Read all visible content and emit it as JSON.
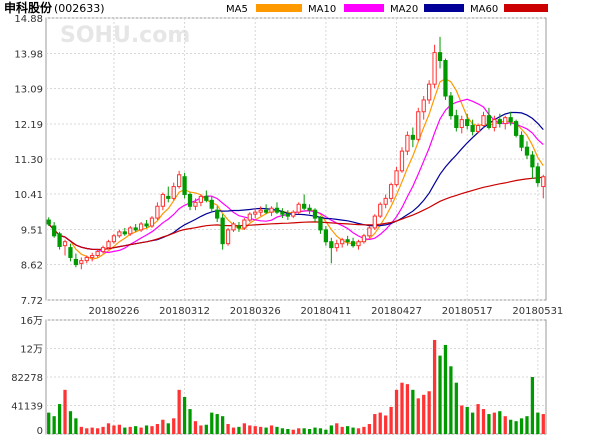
{
  "header": {
    "stock_name": "申科股份",
    "stock_code": "(002633)",
    "watermark": "SOHU.com"
  },
  "legend": [
    {
      "label": "MA5",
      "color": "#ff9900"
    },
    {
      "label": "MA10",
      "color": "#ff00ff"
    },
    {
      "label": "MA20",
      "color": "#000099"
    },
    {
      "label": "MA60",
      "color": "#cc0000"
    }
  ],
  "colors": {
    "up": "#ff3333",
    "down": "#009900",
    "grid": "#d8d8d8",
    "frame": "#999999",
    "axis_text": "#333333"
  },
  "chart_data": [
    {
      "type": "candlestick",
      "y_ticks": [
        "14.88",
        "13.98",
        "13.09",
        "12.19",
        "11.30",
        "10.41",
        "9.51",
        "8.62",
        "7.72"
      ],
      "ylim": [
        7.72,
        14.88
      ],
      "x_tick_labels": [
        {
          "label": "20180226",
          "index": 12
        },
        {
          "label": "20180312",
          "index": 25
        },
        {
          "label": "20180326",
          "index": 38
        },
        {
          "label": "20180411",
          "index": 51
        },
        {
          "label": "20180427",
          "index": 64
        },
        {
          "label": "20180517",
          "index": 77
        },
        {
          "label": "20180531",
          "index": 90
        }
      ],
      "ohlc": [
        [
          9.75,
          9.82,
          9.6,
          9.65
        ],
        [
          9.6,
          9.7,
          9.3,
          9.35
        ],
        [
          9.4,
          9.45,
          9.0,
          9.08
        ],
        [
          9.1,
          9.25,
          8.85,
          9.2
        ],
        [
          9.05,
          9.15,
          8.7,
          8.8
        ],
        [
          8.75,
          8.9,
          8.55,
          8.62
        ],
        [
          8.65,
          8.8,
          8.5,
          8.72
        ],
        [
          8.72,
          8.85,
          8.65,
          8.8
        ],
        [
          8.8,
          8.92,
          8.7,
          8.85
        ],
        [
          8.85,
          9.0,
          8.8,
          8.95
        ],
        [
          8.95,
          9.1,
          8.9,
          9.05
        ],
        [
          9.05,
          9.25,
          9.0,
          9.2
        ],
        [
          9.2,
          9.4,
          9.15,
          9.35
        ],
        [
          9.35,
          9.5,
          9.3,
          9.45
        ],
        [
          9.45,
          9.55,
          9.35,
          9.4
        ],
        [
          9.4,
          9.6,
          9.35,
          9.55
        ],
        [
          9.55,
          9.65,
          9.45,
          9.5
        ],
        [
          9.5,
          9.7,
          9.45,
          9.65
        ],
        [
          9.65,
          9.75,
          9.55,
          9.6
        ],
        [
          9.6,
          9.85,
          9.55,
          9.8
        ],
        [
          9.8,
          10.2,
          9.75,
          10.1
        ],
        [
          10.1,
          10.45,
          10.0,
          10.4
        ],
        [
          10.35,
          10.6,
          10.2,
          10.3
        ],
        [
          10.3,
          10.7,
          10.25,
          10.6
        ],
        [
          10.6,
          11.0,
          10.55,
          10.9
        ],
        [
          10.85,
          10.95,
          10.3,
          10.4
        ],
        [
          10.4,
          10.45,
          10.0,
          10.1
        ],
        [
          10.1,
          10.3,
          10.0,
          10.2
        ],
        [
          10.2,
          10.4,
          10.1,
          10.35
        ],
        [
          10.35,
          10.5,
          10.2,
          10.25
        ],
        [
          10.25,
          10.35,
          9.95,
          10.05
        ],
        [
          10.0,
          10.1,
          9.7,
          9.8
        ],
        [
          9.8,
          9.9,
          9.0,
          9.15
        ],
        [
          9.15,
          9.55,
          9.1,
          9.5
        ],
        [
          9.5,
          9.7,
          9.45,
          9.65
        ],
        [
          9.6,
          9.7,
          9.45,
          9.55
        ],
        [
          9.55,
          9.8,
          9.5,
          9.75
        ],
        [
          9.75,
          9.95,
          9.7,
          9.9
        ],
        [
          9.9,
          10.05,
          9.8,
          9.95
        ],
        [
          9.95,
          10.1,
          9.85,
          10.0
        ],
        [
          10.0,
          10.15,
          9.9,
          9.95
        ],
        [
          9.95,
          10.1,
          9.85,
          10.05
        ],
        [
          10.05,
          10.2,
          9.9,
          9.95
        ],
        [
          9.95,
          10.05,
          9.8,
          9.9
        ],
        [
          9.9,
          10.0,
          9.75,
          9.85
        ],
        [
          9.85,
          10.0,
          9.8,
          9.95
        ],
        [
          9.95,
          10.2,
          9.9,
          10.15
        ],
        [
          10.15,
          10.4,
          10.0,
          10.05
        ],
        [
          10.05,
          10.15,
          9.9,
          10.0
        ],
        [
          10.0,
          10.05,
          9.7,
          9.8
        ],
        [
          9.8,
          9.85,
          9.4,
          9.5
        ],
        [
          9.5,
          9.6,
          9.1,
          9.2
        ],
        [
          9.2,
          9.3,
          8.65,
          9.05
        ],
        [
          9.05,
          9.25,
          8.95,
          9.15
        ],
        [
          9.15,
          9.3,
          9.05,
          9.25
        ],
        [
          9.25,
          9.35,
          9.1,
          9.2
        ],
        [
          9.2,
          9.3,
          9.05,
          9.1
        ],
        [
          9.1,
          9.25,
          9.0,
          9.2
        ],
        [
          9.2,
          9.4,
          9.15,
          9.35
        ],
        [
          9.35,
          9.6,
          9.3,
          9.55
        ],
        [
          9.55,
          9.9,
          9.5,
          9.85
        ],
        [
          9.85,
          10.2,
          9.8,
          10.15
        ],
        [
          10.15,
          10.4,
          10.05,
          10.3
        ],
        [
          10.3,
          10.7,
          10.2,
          10.65
        ],
        [
          10.65,
          11.1,
          10.6,
          11.0
        ],
        [
          11.0,
          11.6,
          10.95,
          11.5
        ],
        [
          11.5,
          12.0,
          11.4,
          11.9
        ],
        [
          11.9,
          12.1,
          11.6,
          11.8
        ],
        [
          11.8,
          12.6,
          11.75,
          12.5
        ],
        [
          12.5,
          12.9,
          12.3,
          12.8
        ],
        [
          12.8,
          13.3,
          12.7,
          13.2
        ],
        [
          13.2,
          14.2,
          13.1,
          14.0
        ],
        [
          14.0,
          14.4,
          13.6,
          13.8
        ],
        [
          13.8,
          13.85,
          12.8,
          12.9
        ],
        [
          12.9,
          13.0,
          12.3,
          12.4
        ],
        [
          12.4,
          12.55,
          12.0,
          12.1
        ],
        [
          12.1,
          12.4,
          11.95,
          12.3
        ],
        [
          12.3,
          12.45,
          12.05,
          12.15
        ],
        [
          12.15,
          12.3,
          11.9,
          12.0
        ],
        [
          12.0,
          12.2,
          11.95,
          12.15
        ],
        [
          12.15,
          12.5,
          12.1,
          12.4
        ],
        [
          12.4,
          12.6,
          12.05,
          12.1
        ],
        [
          12.1,
          12.4,
          12.0,
          12.3
        ],
        [
          12.3,
          12.45,
          12.1,
          12.2
        ],
        [
          12.2,
          12.4,
          12.05,
          12.35
        ],
        [
          12.35,
          12.5,
          12.15,
          12.25
        ],
        [
          12.25,
          12.3,
          11.85,
          11.9
        ],
        [
          11.9,
          12.0,
          11.5,
          11.6
        ],
        [
          11.6,
          11.75,
          11.3,
          11.4
        ],
        [
          11.4,
          11.5,
          10.8,
          11.1
        ],
        [
          11.1,
          11.2,
          10.6,
          10.7
        ],
        [
          10.6,
          10.9,
          10.3,
          10.85
        ]
      ],
      "volume": {
        "y_ticks": [
          "16万",
          "12万",
          "82278",
          "41139",
          "0"
        ],
        "ylim": [
          0,
          160000
        ],
        "values": [
          30000,
          25000,
          42000,
          62000,
          32000,
          22000,
          10000,
          8000,
          9000,
          8000,
          10000,
          15000,
          12000,
          13000,
          9000,
          10000,
          11000,
          9000,
          12000,
          11000,
          14000,
          20000,
          15000,
          22000,
          62000,
          52000,
          35000,
          18000,
          12000,
          13000,
          30000,
          28000,
          25000,
          14000,
          9000,
          10000,
          15000,
          12000,
          11000,
          10000,
          9000,
          12000,
          10000,
          8000,
          7000,
          6000,
          8000,
          8000,
          7000,
          9000,
          8000,
          6000,
          12000,
          15000,
          10000,
          11000,
          9000,
          8000,
          10000,
          14000,
          28000,
          30000,
          26000,
          38000,
          62000,
          72000,
          70000,
          62000,
          50000,
          55000,
          60000,
          132000,
          110000,
          125000,
          95000,
          72000,
          40000,
          38000,
          30000,
          42000,
          35000,
          28000,
          30000,
          32000,
          25000,
          20000,
          18000,
          22000,
          25000,
          80000,
          30000,
          28000
        ]
      }
    }
  ]
}
